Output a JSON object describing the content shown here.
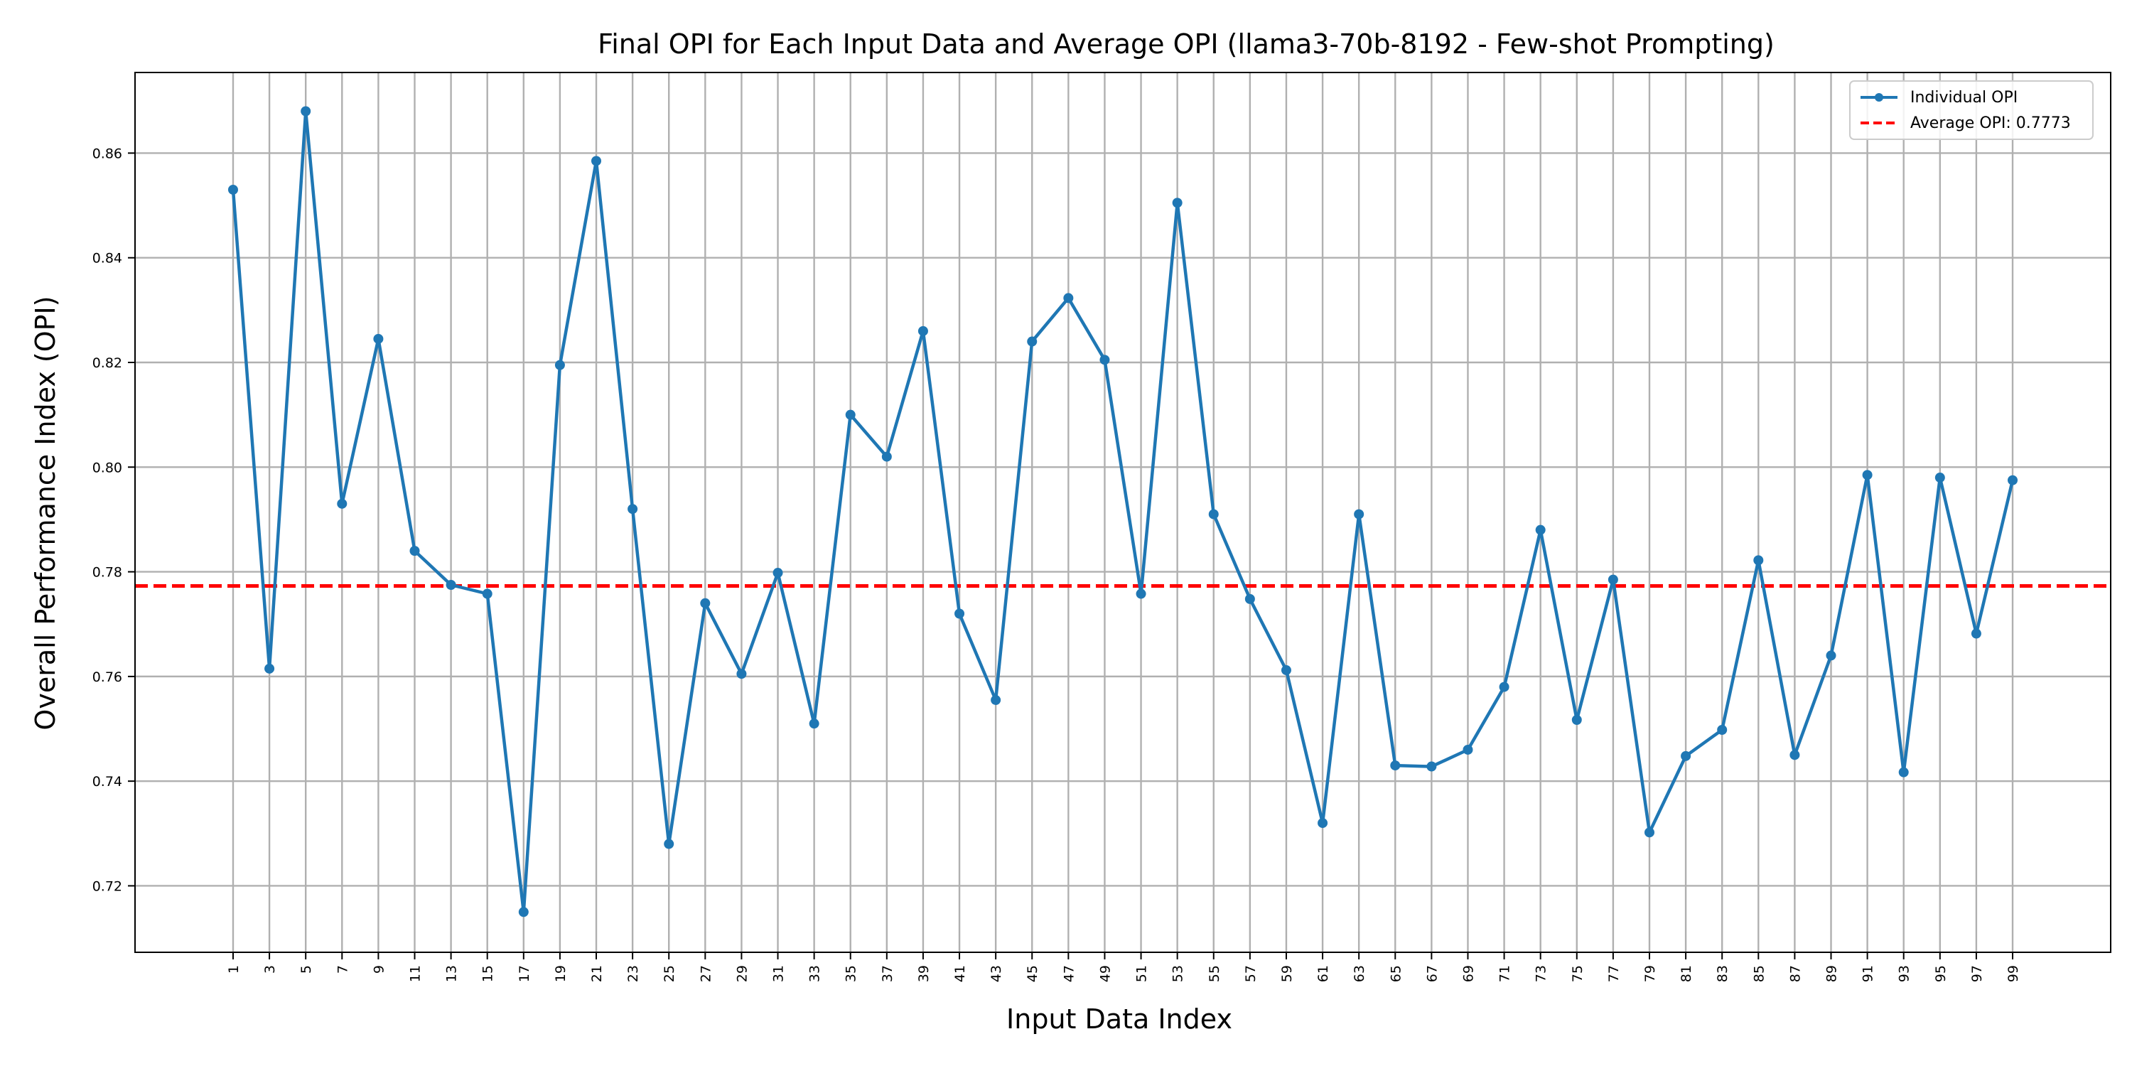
{
  "chart_data": {
    "type": "line",
    "title": "Final OPI for Each Input Data and Average OPI (llama3-70b-8192 - Few-shot Prompting)",
    "xlabel": "Input Data Index",
    "ylabel": "Overall Performance Index (OPI)",
    "x_ticks": [
      1,
      3,
      5,
      7,
      9,
      11,
      13,
      15,
      17,
      19,
      21,
      23,
      25,
      27,
      29,
      31,
      33,
      35,
      37,
      39,
      41,
      43,
      45,
      47,
      49,
      51,
      53,
      55,
      57,
      59,
      61,
      63,
      65,
      67,
      69,
      71,
      73,
      75,
      77,
      79,
      81,
      83,
      85,
      87,
      89,
      91,
      93,
      95,
      97,
      99
    ],
    "y_ticks": [
      0.72,
      0.74,
      0.76,
      0.78,
      0.8,
      0.82,
      0.84,
      0.86
    ],
    "y_tick_labels": [
      "0.72",
      "0.74",
      "0.76",
      "0.78",
      "0.80",
      "0.82",
      "0.84",
      "0.86"
    ],
    "xlim": [
      -4.4,
      104.4
    ],
    "ylim": [
      0.7073,
      0.8754
    ],
    "grid": true,
    "legend_position": "top-right",
    "series": [
      {
        "name": "Individual OPI",
        "color": "#1f77b4",
        "x": [
          1,
          3,
          5,
          7,
          9,
          11,
          13,
          15,
          17,
          19,
          21,
          23,
          25,
          27,
          29,
          31,
          33,
          35,
          37,
          39,
          41,
          43,
          45,
          47,
          49,
          51,
          53,
          55,
          57,
          59,
          61,
          63,
          65,
          67,
          69,
          71,
          73,
          75,
          77,
          79,
          81,
          83,
          85,
          87,
          89,
          91,
          93,
          95,
          97,
          99
        ],
        "y": [
          0.853,
          0.7615,
          0.868,
          0.793,
          0.8245,
          0.784,
          0.7775,
          0.7758,
          0.715,
          0.8195,
          0.8585,
          0.792,
          0.728,
          0.774,
          0.7605,
          0.7798,
          0.751,
          0.81,
          0.802,
          0.826,
          0.772,
          0.7555,
          0.824,
          0.8323,
          0.8205,
          0.7758,
          0.8505,
          0.791,
          0.7748,
          0.7612,
          0.732,
          0.791,
          0.743,
          0.7428,
          0.746,
          0.758,
          0.788,
          0.7517,
          0.7785,
          0.7302,
          0.7448,
          0.7498,
          0.7822,
          0.745,
          0.764,
          0.7985,
          0.7417,
          0.798,
          0.7682,
          0.7975
        ]
      }
    ],
    "average": {
      "name": "Average OPI: 0.7773",
      "value": 0.7773,
      "color": "#ff0000"
    }
  }
}
